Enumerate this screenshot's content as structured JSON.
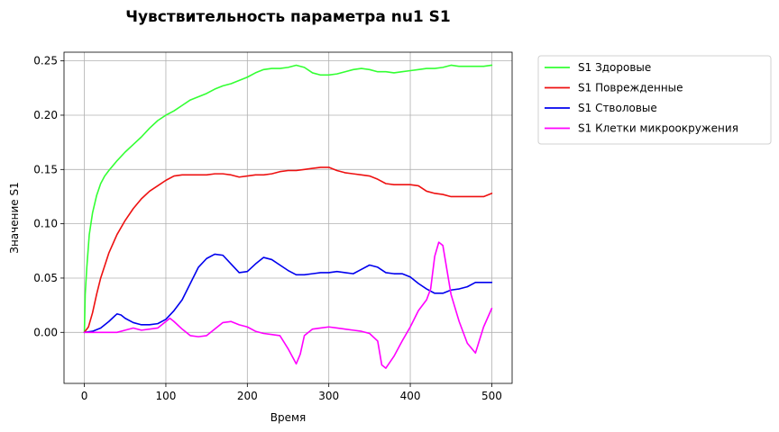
{
  "chart_data": {
    "type": "line",
    "title": "Чувствительность параметра nu1 S1",
    "xlabel": "Время",
    "ylabel": "Значение S1",
    "xlim": [
      -25,
      525
    ],
    "ylim": [
      -0.047,
      0.258
    ],
    "xticks": [
      0,
      100,
      200,
      300,
      400,
      500
    ],
    "xtick_labels": [
      "0",
      "100",
      "200",
      "300",
      "400",
      "500"
    ],
    "yticks": [
      0.0,
      0.05,
      0.1,
      0.15,
      0.2,
      0.25
    ],
    "ytick_labels": [
      "0.00",
      "0.05",
      "0.10",
      "0.15",
      "0.20",
      "0.25"
    ],
    "grid": true,
    "legend_position": "outside-right-top",
    "series": [
      {
        "name": "S1 Здоровые",
        "color": "#33ff33",
        "points": [
          [
            0,
            0
          ],
          [
            1,
            0.035
          ],
          [
            3,
            0.06
          ],
          [
            6,
            0.09
          ],
          [
            10,
            0.11
          ],
          [
            15,
            0.126
          ],
          [
            20,
            0.137
          ],
          [
            25,
            0.144
          ],
          [
            30,
            0.149
          ],
          [
            40,
            0.158
          ],
          [
            50,
            0.166
          ],
          [
            60,
            0.173
          ],
          [
            70,
            0.18
          ],
          [
            80,
            0.188
          ],
          [
            90,
            0.195
          ],
          [
            100,
            0.2
          ],
          [
            110,
            0.204
          ],
          [
            120,
            0.209
          ],
          [
            130,
            0.214
          ],
          [
            140,
            0.217
          ],
          [
            150,
            0.22
          ],
          [
            160,
            0.224
          ],
          [
            170,
            0.227
          ],
          [
            180,
            0.229
          ],
          [
            190,
            0.232
          ],
          [
            200,
            0.235
          ],
          [
            210,
            0.239
          ],
          [
            220,
            0.242
          ],
          [
            230,
            0.243
          ],
          [
            240,
            0.243
          ],
          [
            250,
            0.244
          ],
          [
            260,
            0.246
          ],
          [
            270,
            0.244
          ],
          [
            280,
            0.239
          ],
          [
            290,
            0.237
          ],
          [
            300,
            0.237
          ],
          [
            310,
            0.238
          ],
          [
            320,
            0.24
          ],
          [
            330,
            0.242
          ],
          [
            340,
            0.243
          ],
          [
            350,
            0.242
          ],
          [
            360,
            0.24
          ],
          [
            370,
            0.24
          ],
          [
            380,
            0.239
          ],
          [
            390,
            0.24
          ],
          [
            400,
            0.241
          ],
          [
            410,
            0.242
          ],
          [
            420,
            0.243
          ],
          [
            430,
            0.243
          ],
          [
            440,
            0.244
          ],
          [
            450,
            0.246
          ],
          [
            460,
            0.245
          ],
          [
            470,
            0.245
          ],
          [
            480,
            0.245
          ],
          [
            490,
            0.245
          ],
          [
            500,
            0.246
          ]
        ]
      },
      {
        "name": "S1 Поврежденные",
        "color": "#ee1111",
        "points": [
          [
            0,
            0
          ],
          [
            5,
            0.005
          ],
          [
            10,
            0.018
          ],
          [
            15,
            0.035
          ],
          [
            20,
            0.05
          ],
          [
            30,
            0.073
          ],
          [
            40,
            0.09
          ],
          [
            50,
            0.103
          ],
          [
            60,
            0.114
          ],
          [
            70,
            0.123
          ],
          [
            80,
            0.13
          ],
          [
            90,
            0.135
          ],
          [
            100,
            0.14
          ],
          [
            110,
            0.144
          ],
          [
            120,
            0.145
          ],
          [
            130,
            0.145
          ],
          [
            140,
            0.145
          ],
          [
            150,
            0.145
          ],
          [
            160,
            0.146
          ],
          [
            170,
            0.146
          ],
          [
            180,
            0.145
          ],
          [
            190,
            0.143
          ],
          [
            200,
            0.144
          ],
          [
            210,
            0.145
          ],
          [
            220,
            0.145
          ],
          [
            230,
            0.146
          ],
          [
            240,
            0.148
          ],
          [
            250,
            0.149
          ],
          [
            260,
            0.149
          ],
          [
            270,
            0.15
          ],
          [
            280,
            0.151
          ],
          [
            290,
            0.152
          ],
          [
            300,
            0.152
          ],
          [
            310,
            0.149
          ],
          [
            320,
            0.147
          ],
          [
            330,
            0.146
          ],
          [
            340,
            0.145
          ],
          [
            350,
            0.144
          ],
          [
            360,
            0.141
          ],
          [
            370,
            0.137
          ],
          [
            380,
            0.136
          ],
          [
            390,
            0.136
          ],
          [
            400,
            0.136
          ],
          [
            410,
            0.135
          ],
          [
            420,
            0.13
          ],
          [
            430,
            0.128
          ],
          [
            440,
            0.127
          ],
          [
            450,
            0.125
          ],
          [
            460,
            0.125
          ],
          [
            470,
            0.125
          ],
          [
            480,
            0.125
          ],
          [
            490,
            0.125
          ],
          [
            500,
            0.128
          ]
        ]
      },
      {
        "name": "S1 Стволовые",
        "color": "#0000ee",
        "points": [
          [
            0,
            0
          ],
          [
            10,
            0.001
          ],
          [
            20,
            0.004
          ],
          [
            30,
            0.01
          ],
          [
            40,
            0.017
          ],
          [
            45,
            0.016
          ],
          [
            50,
            0.013
          ],
          [
            60,
            0.009
          ],
          [
            70,
            0.007
          ],
          [
            80,
            0.007
          ],
          [
            90,
            0.008
          ],
          [
            100,
            0.012
          ],
          [
            110,
            0.02
          ],
          [
            120,
            0.03
          ],
          [
            130,
            0.045
          ],
          [
            140,
            0.06
          ],
          [
            150,
            0.068
          ],
          [
            160,
            0.072
          ],
          [
            170,
            0.071
          ],
          [
            180,
            0.063
          ],
          [
            190,
            0.055
          ],
          [
            200,
            0.056
          ],
          [
            210,
            0.063
          ],
          [
            220,
            0.069
          ],
          [
            230,
            0.067
          ],
          [
            240,
            0.062
          ],
          [
            250,
            0.057
          ],
          [
            260,
            0.053
          ],
          [
            270,
            0.053
          ],
          [
            280,
            0.054
          ],
          [
            290,
            0.055
          ],
          [
            300,
            0.055
          ],
          [
            310,
            0.056
          ],
          [
            320,
            0.055
          ],
          [
            330,
            0.054
          ],
          [
            340,
            0.058
          ],
          [
            350,
            0.062
          ],
          [
            360,
            0.06
          ],
          [
            370,
            0.055
          ],
          [
            380,
            0.054
          ],
          [
            390,
            0.054
          ],
          [
            400,
            0.051
          ],
          [
            410,
            0.045
          ],
          [
            420,
            0.04
          ],
          [
            430,
            0.036
          ],
          [
            440,
            0.036
          ],
          [
            450,
            0.039
          ],
          [
            460,
            0.04
          ],
          [
            470,
            0.042
          ],
          [
            480,
            0.046
          ],
          [
            490,
            0.046
          ],
          [
            500,
            0.046
          ]
        ]
      },
      {
        "name": "S1 Клетки микроокружения",
        "color": "#ff00ff",
        "points": [
          [
            0,
            0
          ],
          [
            20,
            0
          ],
          [
            40,
            0
          ],
          [
            50,
            0.002
          ],
          [
            60,
            0.004
          ],
          [
            70,
            0.002
          ],
          [
            80,
            0.003
          ],
          [
            90,
            0.004
          ],
          [
            100,
            0.01
          ],
          [
            105,
            0.013
          ],
          [
            110,
            0.01
          ],
          [
            120,
            0.003
          ],
          [
            130,
            -0.003
          ],
          [
            140,
            -0.004
          ],
          [
            150,
            -0.003
          ],
          [
            160,
            0.003
          ],
          [
            170,
            0.009
          ],
          [
            180,
            0.01
          ],
          [
            190,
            0.007
          ],
          [
            200,
            0.005
          ],
          [
            210,
            0.001
          ],
          [
            220,
            -0.001
          ],
          [
            230,
            -0.002
          ],
          [
            240,
            -0.003
          ],
          [
            250,
            -0.015
          ],
          [
            260,
            -0.029
          ],
          [
            265,
            -0.02
          ],
          [
            270,
            -0.003
          ],
          [
            280,
            0.003
          ],
          [
            290,
            0.004
          ],
          [
            300,
            0.005
          ],
          [
            310,
            0.004
          ],
          [
            320,
            0.003
          ],
          [
            330,
            0.002
          ],
          [
            340,
            0.001
          ],
          [
            350,
            -0.001
          ],
          [
            360,
            -0.008
          ],
          [
            365,
            -0.03
          ],
          [
            370,
            -0.033
          ],
          [
            380,
            -0.022
          ],
          [
            390,
            -0.008
          ],
          [
            400,
            0.005
          ],
          [
            410,
            0.02
          ],
          [
            420,
            0.03
          ],
          [
            425,
            0.04
          ],
          [
            430,
            0.07
          ],
          [
            435,
            0.083
          ],
          [
            440,
            0.08
          ],
          [
            450,
            0.035
          ],
          [
            460,
            0.01
          ],
          [
            470,
            -0.01
          ],
          [
            480,
            -0.019
          ],
          [
            490,
            0.005
          ],
          [
            500,
            0.022
          ]
        ]
      }
    ]
  }
}
